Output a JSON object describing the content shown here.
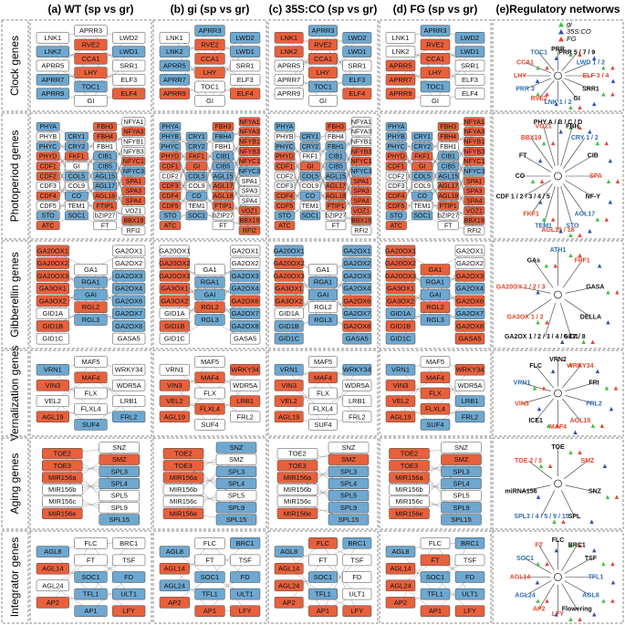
{
  "header": {
    "columns": [
      "(a) WT (sp vs gr)",
      "(b) gi (sp vs gr)",
      "(c) 35S:CO (sp vs gr)",
      "(d) FG (sp vs gr)",
      "(e)Regulatory networws"
    ],
    "legend": [
      {
        "name": "gi",
        "color": "#3fbf3f"
      },
      {
        "name": "35S:CO",
        "color": "#2e4fb5"
      },
      {
        "name": "FG",
        "color": "#e8452c"
      }
    ]
  },
  "palette": {
    "r": "#e8603c",
    "b": "#6ea8d0",
    "w": "#ffffff"
  },
  "rows": [
    {
      "label": "Clock genes",
      "gene_columns": [
        [
          "LNK1",
          "LNK2",
          "APRR5",
          "APRR7",
          "APRR9"
        ],
        [
          "APRR3",
          "RVE2",
          "CCA1",
          "LHY",
          "TOC1",
          "GI"
        ],
        [
          "LWD2",
          "LWD1",
          "SRR1",
          "ELF3",
          "ELF4"
        ]
      ],
      "states": [
        [
          "wbwbb",
          "wrrrbw",
          "wbwwr"
        ],
        [
          "wbbbr",
          "brrrww",
          "bbwwr"
        ],
        [
          "rrwww",
          "brrrbw",
          "bbwbr"
        ],
        [
          "wwrrr",
          "brrrbw",
          "bbwww"
        ]
      ],
      "network": [
        {
          "text": "PRR",
          "c": "k"
        },
        {
          "text": "PRR 5 / 7 / 9",
          "c": "k"
        },
        {
          "text": "LWD 1 / 2",
          "c": "b"
        },
        {
          "text": "ELF 3 / 4",
          "c": "r"
        },
        {
          "text": "SRR1",
          "c": "k"
        },
        {
          "text": "GI",
          "c": "k"
        },
        {
          "text": "LNK 1 / 2",
          "c": "b"
        },
        {
          "text": "RVE2",
          "c": "r"
        },
        {
          "text": "PRR 3",
          "c": "b"
        },
        {
          "text": "LHY",
          "c": "r"
        },
        {
          "text": "CCA1",
          "c": "r"
        },
        {
          "text": "TOC1",
          "c": "b"
        }
      ]
    },
    {
      "label": "Photoperiod genes",
      "gene_columns": [
        [
          "PHYA",
          "PHYB",
          "PHYC",
          "PHYD",
          "CDF1",
          "CDF2",
          "CDF3",
          "CDF4",
          "CDF5",
          "STO",
          "ATC"
        ],
        [
          "CRY1",
          "CRY2",
          "FKF1",
          "GI",
          "COL5",
          "COL9",
          "CO",
          "TEM1",
          "SOC1"
        ],
        [
          "FBH3",
          "FBH4",
          "FBH1",
          "CIB1",
          "CIB5",
          "AGL15",
          "AGL17",
          "AGL18",
          "FTIP1",
          "bZIP27",
          "FT"
        ],
        [
          "NFYA1",
          "NFYA3",
          "NFYB1",
          "NFYB3",
          "NFYC1",
          "NFYC3",
          "SPA1",
          "SPA3",
          "SPA4",
          "VOZ1",
          "BBX19",
          "RFI2"
        ]
      ],
      "states": [
        [
          "bwbrrrwrwbr",
          "bbrwbwbwb",
          "rrwbbbbrrww",
          "wrwwrbrrrwrw"
        ],
        [
          "bbbrrwrrrbr",
          "bbrrbwbwb",
          "rbwbbbrrrww",
          "rrrrrbwwwrrr"
        ],
        [
          "bwbrrwwrrbr",
          "bbwrbwbwb",
          "rwbbbbrrrww",
          "wwwrrbrrrrrw"
        ],
        [
          "bbbrrwwrrbr",
          "bbrrbwbwb",
          "rrwbbbrrrww",
          "rrrrrbrrrrrw"
        ]
      ],
      "network": [
        {
          "text": "PHY A / B / C / D",
          "c": "k"
        },
        {
          "text": "FBH",
          "c": "k"
        },
        {
          "text": "CRY 1 / 2",
          "c": "b"
        },
        {
          "text": "CIB",
          "c": "k"
        },
        {
          "text": "SPA",
          "c": "r"
        },
        {
          "text": "NF-Y",
          "c": "k"
        },
        {
          "text": "AGL17",
          "c": "b"
        },
        {
          "text": "STO",
          "c": "b"
        },
        {
          "text": "AGL15 / 18",
          "c": "r"
        },
        {
          "text": "TEM1",
          "c": "b"
        },
        {
          "text": "FKF1",
          "c": "r"
        },
        {
          "text": "CDF 1 / 2 / 3 / 4 / 5",
          "c": "k"
        },
        {
          "text": "CO",
          "c": "k"
        },
        {
          "text": "FT",
          "c": "k"
        },
        {
          "text": "BBX19",
          "c": "r"
        },
        {
          "text": "VOZ1",
          "c": "r"
        }
      ]
    },
    {
      "label": "Gibberellin genes",
      "gene_columns": [
        [
          "GA20OX1",
          "GA20OX2",
          "GA20OX3",
          "GA3OX1",
          "GA3OX2",
          "GID1A",
          "GID1B",
          "GID1C"
        ],
        [
          "GA1",
          "RGA1",
          "GAI",
          "RGL2",
          "RGL3"
        ],
        [
          "GA2OX1",
          "GA2OX2",
          "GA2OX3",
          "GA2OX4",
          "GA2OX6",
          "GA2OX7",
          "GA2OX8",
          "GASA5"
        ]
      ],
      "states": [
        [
          "rrrrrwrw",
          "wbbrb",
          "wwbbbbbw"
        ],
        [
          "wrrrrwrw",
          "wbbrb",
          "wwbbrbbw"
        ],
        [
          "brrrrwbb",
          "wbbwb",
          "bbbbrbrb"
        ],
        [
          "rrrrrbrb",
          "rbbrb",
          "wwrbrbrr"
        ]
      ],
      "network": [
        {
          "text": "ATH1",
          "c": "b"
        },
        {
          "text": "FPF1",
          "c": "r"
        },
        {
          "text": "GASA",
          "c": "k"
        },
        {
          "text": "DELLA",
          "c": "k"
        },
        {
          "text": "GID1",
          "c": "k"
        },
        {
          "text": "GA2OX 1 / 2 / 3 / 4 / 6 / 7 / 8",
          "c": "k"
        },
        {
          "text": "GA3OX 1 / 2",
          "c": "r"
        },
        {
          "text": "GA20OX 1 / 2 / 3",
          "c": "r"
        },
        {
          "text": "GAs",
          "c": "k"
        }
      ]
    },
    {
      "label": "Vernalization genes",
      "gene_columns": [
        [
          "VRN1",
          "VIN3",
          "VEL2",
          "AGL19"
        ],
        [
          "MAF5",
          "MAF4",
          "FLX",
          "FLXL4",
          "SUF4"
        ],
        [
          "WRKY34",
          "WDR5A",
          "LRB1",
          "FRL2"
        ]
      ],
      "states": [
        [
          "brwr",
          "wrwwb",
          "wwwb"
        ],
        [
          "wrrr",
          "wrwrw",
          "rwrw"
        ],
        [
          "brrr",
          "wrwww",
          "bwww"
        ],
        [
          "brrr",
          "wrrrb",
          "rwbb"
        ]
      ],
      "network": [
        {
          "text": "VRN2",
          "c": "k"
        },
        {
          "text": "WRKY34",
          "c": "r"
        },
        {
          "text": "FRI",
          "c": "k"
        },
        {
          "text": "FRL2",
          "c": "b"
        },
        {
          "text": "AGL19",
          "c": "r"
        },
        {
          "text": "MAF4",
          "c": "r"
        },
        {
          "text": "ICE1",
          "c": "k"
        },
        {
          "text": "VIN3",
          "c": "r"
        },
        {
          "text": "VRN1",
          "c": "b"
        },
        {
          "text": "FLC",
          "c": "k"
        }
      ]
    },
    {
      "label": "Aging genes",
      "gene_columns": [
        [
          "TOE2",
          "TOE3",
          "MIR156a",
          "MIR156b",
          "MIR156c",
          "MIR156e"
        ],
        [
          "SNZ",
          "SMZ",
          "SPL3",
          "SPL4",
          "SPL5",
          "SPL9",
          "SPL15"
        ]
      ],
      "states": [
        [
          "rrrwwr",
          "wrbbwwb"
        ],
        [
          "rrrwwr",
          "bwbbwbb"
        ],
        [
          "wrrwwr",
          "wrbbbbb"
        ],
        [
          "rrrwwr",
          "wrbbwbb"
        ]
      ],
      "network": [
        {
          "text": "TOE",
          "c": "k"
        },
        {
          "text": "SMZ",
          "c": "r"
        },
        {
          "text": "SNZ",
          "c": "k"
        },
        {
          "text": "SPL",
          "c": "k"
        },
        {
          "text": "SPL3 / 4 / 5 / 9 / 15",
          "c": "b"
        },
        {
          "text": "miRNA156",
          "c": "k"
        },
        {
          "text": "TOE 2 / 3",
          "c": "r"
        }
      ]
    },
    {
      "label": "Integrator genes",
      "gene_columns": [
        [
          "AGL8",
          "AGL14",
          "AGL24",
          "AP2"
        ],
        [
          "FLC",
          "FT",
          "SOC1",
          "TFL1",
          "AP1"
        ],
        [
          "BRC1",
          "TSF",
          "FD",
          "ULT1",
          "LFY"
        ]
      ],
      "states": [
        [
          "brwr",
          "wwbbb",
          "wwbbr"
        ],
        [
          "brbr",
          "wwbbr",
          "bwbbr"
        ],
        [
          "brrr",
          "rwbbr",
          "bwwwr"
        ],
        [
          "brrr",
          "wrbbr",
          "bwbbr"
        ]
      ],
      "network": [
        {
          "text": "FLC",
          "c": "k"
        },
        {
          "text": "BRC1",
          "c": "k"
        },
        {
          "text": "TSF",
          "c": "k"
        },
        {
          "text": "TFL1",
          "c": "b"
        },
        {
          "text": "AGL8",
          "c": "b"
        },
        {
          "text": "Flowering",
          "c": "k"
        },
        {
          "text": "LFY",
          "c": "r"
        },
        {
          "text": "AP2",
          "c": "r"
        },
        {
          "text": "AGL24",
          "c": "b"
        },
        {
          "text": "AGL14",
          "c": "r"
        },
        {
          "text": "SOC1",
          "c": "b"
        },
        {
          "text": "FT",
          "c": "r"
        }
      ]
    }
  ]
}
